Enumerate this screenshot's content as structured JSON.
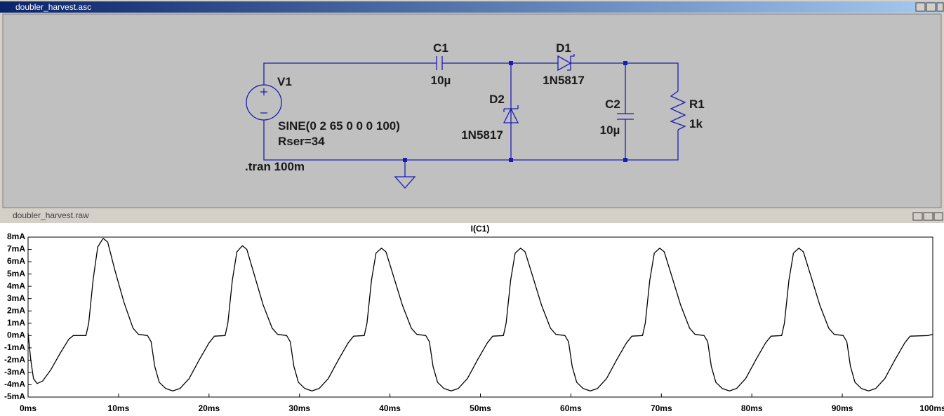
{
  "schematic": {
    "title": "doubler_harvest.asc",
    "V1": {
      "name": "V1",
      "value": "SINE(0 2 65 0 0 0 100)",
      "param": "Rser=34"
    },
    "C1": {
      "name": "C1",
      "value": "10µ"
    },
    "D1": {
      "name": "D1",
      "value": "1N5817"
    },
    "D2": {
      "name": "D2",
      "value": "1N5817"
    },
    "C2": {
      "name": "C2",
      "value": "10µ"
    },
    "R1": {
      "name": "R1",
      "value": "1k"
    },
    "directive": ".tran 100m"
  },
  "plot_window": {
    "title": "doubler_harvest.raw"
  },
  "chart_data": {
    "type": "line",
    "title": "I(C1)",
    "xlim": [
      0,
      100
    ],
    "ylim": [
      -5,
      8
    ],
    "xticks": [
      {
        "value": 0,
        "label": "0ms"
      },
      {
        "value": 10,
        "label": "10ms"
      },
      {
        "value": 20,
        "label": "20ms"
      },
      {
        "value": 30,
        "label": "30ms"
      },
      {
        "value": 40,
        "label": "40ms"
      },
      {
        "value": 50,
        "label": "50ms"
      },
      {
        "value": 60,
        "label": "60ms"
      },
      {
        "value": 70,
        "label": "70ms"
      },
      {
        "value": 80,
        "label": "80ms"
      },
      {
        "value": 90,
        "label": "90ms"
      },
      {
        "value": 100,
        "label": "100ms"
      }
    ],
    "yticks": [
      {
        "value": 8,
        "label": "8mA"
      },
      {
        "value": 7,
        "label": "7mA"
      },
      {
        "value": 6,
        "label": "6mA"
      },
      {
        "value": 5,
        "label": "5mA"
      },
      {
        "value": 4,
        "label": "4mA"
      },
      {
        "value": 3,
        "label": "3mA"
      },
      {
        "value": 2,
        "label": "2mA"
      },
      {
        "value": 1,
        "label": "1mA"
      },
      {
        "value": 0,
        "label": "0mA"
      },
      {
        "value": -1,
        "label": "-1mA"
      },
      {
        "value": -2,
        "label": "-2mA"
      },
      {
        "value": -3,
        "label": "-3mA"
      },
      {
        "value": -4,
        "label": "-4mA"
      },
      {
        "value": -5,
        "label": "-5mA"
      }
    ],
    "grid": false,
    "series": [
      {
        "name": "I(C1)",
        "color": "#000000",
        "x": [
          0,
          0.3,
          0.6,
          1.0,
          1.6,
          2.5,
          3.5,
          4.5,
          5.0,
          6.4,
          6.7,
          7.2,
          7.7,
          8.3,
          8.8,
          9.6,
          10.6,
          11.6,
          12.2,
          13.2,
          13.6,
          14.0,
          14.5,
          15.2,
          16.0,
          16.8,
          17.8,
          18.9,
          20.0,
          20.6,
          21.78,
          22.08,
          22.58,
          23.08,
          23.68,
          24.18,
          24.98,
          25.98,
          26.98,
          27.58,
          28.58,
          28.98,
          29.38,
          29.88,
          30.58,
          31.38,
          32.18,
          33.18,
          34.28,
          35.38,
          35.98,
          37.16,
          37.46,
          37.96,
          38.46,
          39.06,
          39.56,
          40.36,
          41.36,
          42.36,
          42.96,
          43.96,
          44.36,
          44.76,
          45.26,
          45.96,
          46.76,
          47.56,
          48.56,
          49.66,
          50.76,
          51.36,
          52.54,
          52.84,
          53.34,
          53.84,
          54.44,
          54.94,
          55.74,
          56.74,
          57.74,
          58.34,
          59.34,
          59.74,
          60.14,
          60.64,
          61.34,
          62.14,
          62.94,
          63.94,
          65.04,
          66.14,
          66.74,
          67.92,
          68.22,
          68.72,
          69.22,
          69.82,
          70.32,
          71.12,
          72.12,
          73.12,
          73.72,
          74.72,
          75.12,
          75.52,
          76.02,
          76.72,
          77.52,
          78.32,
          79.32,
          80.42,
          81.52,
          82.12,
          83.3,
          83.6,
          84.1,
          84.6,
          85.2,
          85.7,
          86.5,
          87.5,
          88.5,
          89.1,
          90.1,
          90.5,
          90.9,
          91.4,
          92.1,
          92.9,
          93.7,
          94.7,
          95.8,
          96.9,
          97.5,
          99.5,
          100
        ],
        "values": [
          0.2,
          -2.0,
          -3.5,
          -3.9,
          -3.7,
          -2.8,
          -1.5,
          -0.3,
          0,
          0,
          1.0,
          4.6,
          7.2,
          7.9,
          7.6,
          5.3,
          2.7,
          0.6,
          0.1,
          0,
          -0.5,
          -2.5,
          -3.8,
          -4.3,
          -4.5,
          -4.3,
          -3.5,
          -2.0,
          -0.6,
          -0.05,
          0,
          1.0,
          4.5,
          6.8,
          7.3,
          7.0,
          5.0,
          2.5,
          0.6,
          0.1,
          0,
          -0.5,
          -2.5,
          -3.8,
          -4.3,
          -4.5,
          -4.3,
          -3.5,
          -2.0,
          -0.6,
          -0.05,
          0,
          1.0,
          4.5,
          6.7,
          7.1,
          6.8,
          4.9,
          2.5,
          0.6,
          0.1,
          0,
          -0.5,
          -2.5,
          -3.8,
          -4.3,
          -4.5,
          -4.3,
          -3.5,
          -2.0,
          -0.6,
          -0.05,
          0,
          1.0,
          4.5,
          6.7,
          7.1,
          6.8,
          4.9,
          2.5,
          0.6,
          0.1,
          0,
          -0.5,
          -2.5,
          -3.8,
          -4.3,
          -4.5,
          -4.3,
          -3.5,
          -2.0,
          -0.6,
          -0.05,
          0,
          1.0,
          4.5,
          6.7,
          7.1,
          6.8,
          4.9,
          2.5,
          0.6,
          0.1,
          0,
          -0.5,
          -2.5,
          -3.8,
          -4.3,
          -4.5,
          -4.3,
          -3.5,
          -2.0,
          -0.6,
          -0.05,
          0,
          1.0,
          4.5,
          6.7,
          7.1,
          6.8,
          4.9,
          2.5,
          0.6,
          0.1,
          0,
          -0.5,
          -2.5,
          -3.8,
          -4.3,
          -4.5,
          -4.3,
          -3.5,
          -2.0,
          -0.6,
          -0.05,
          0,
          0.1
        ]
      }
    ]
  }
}
